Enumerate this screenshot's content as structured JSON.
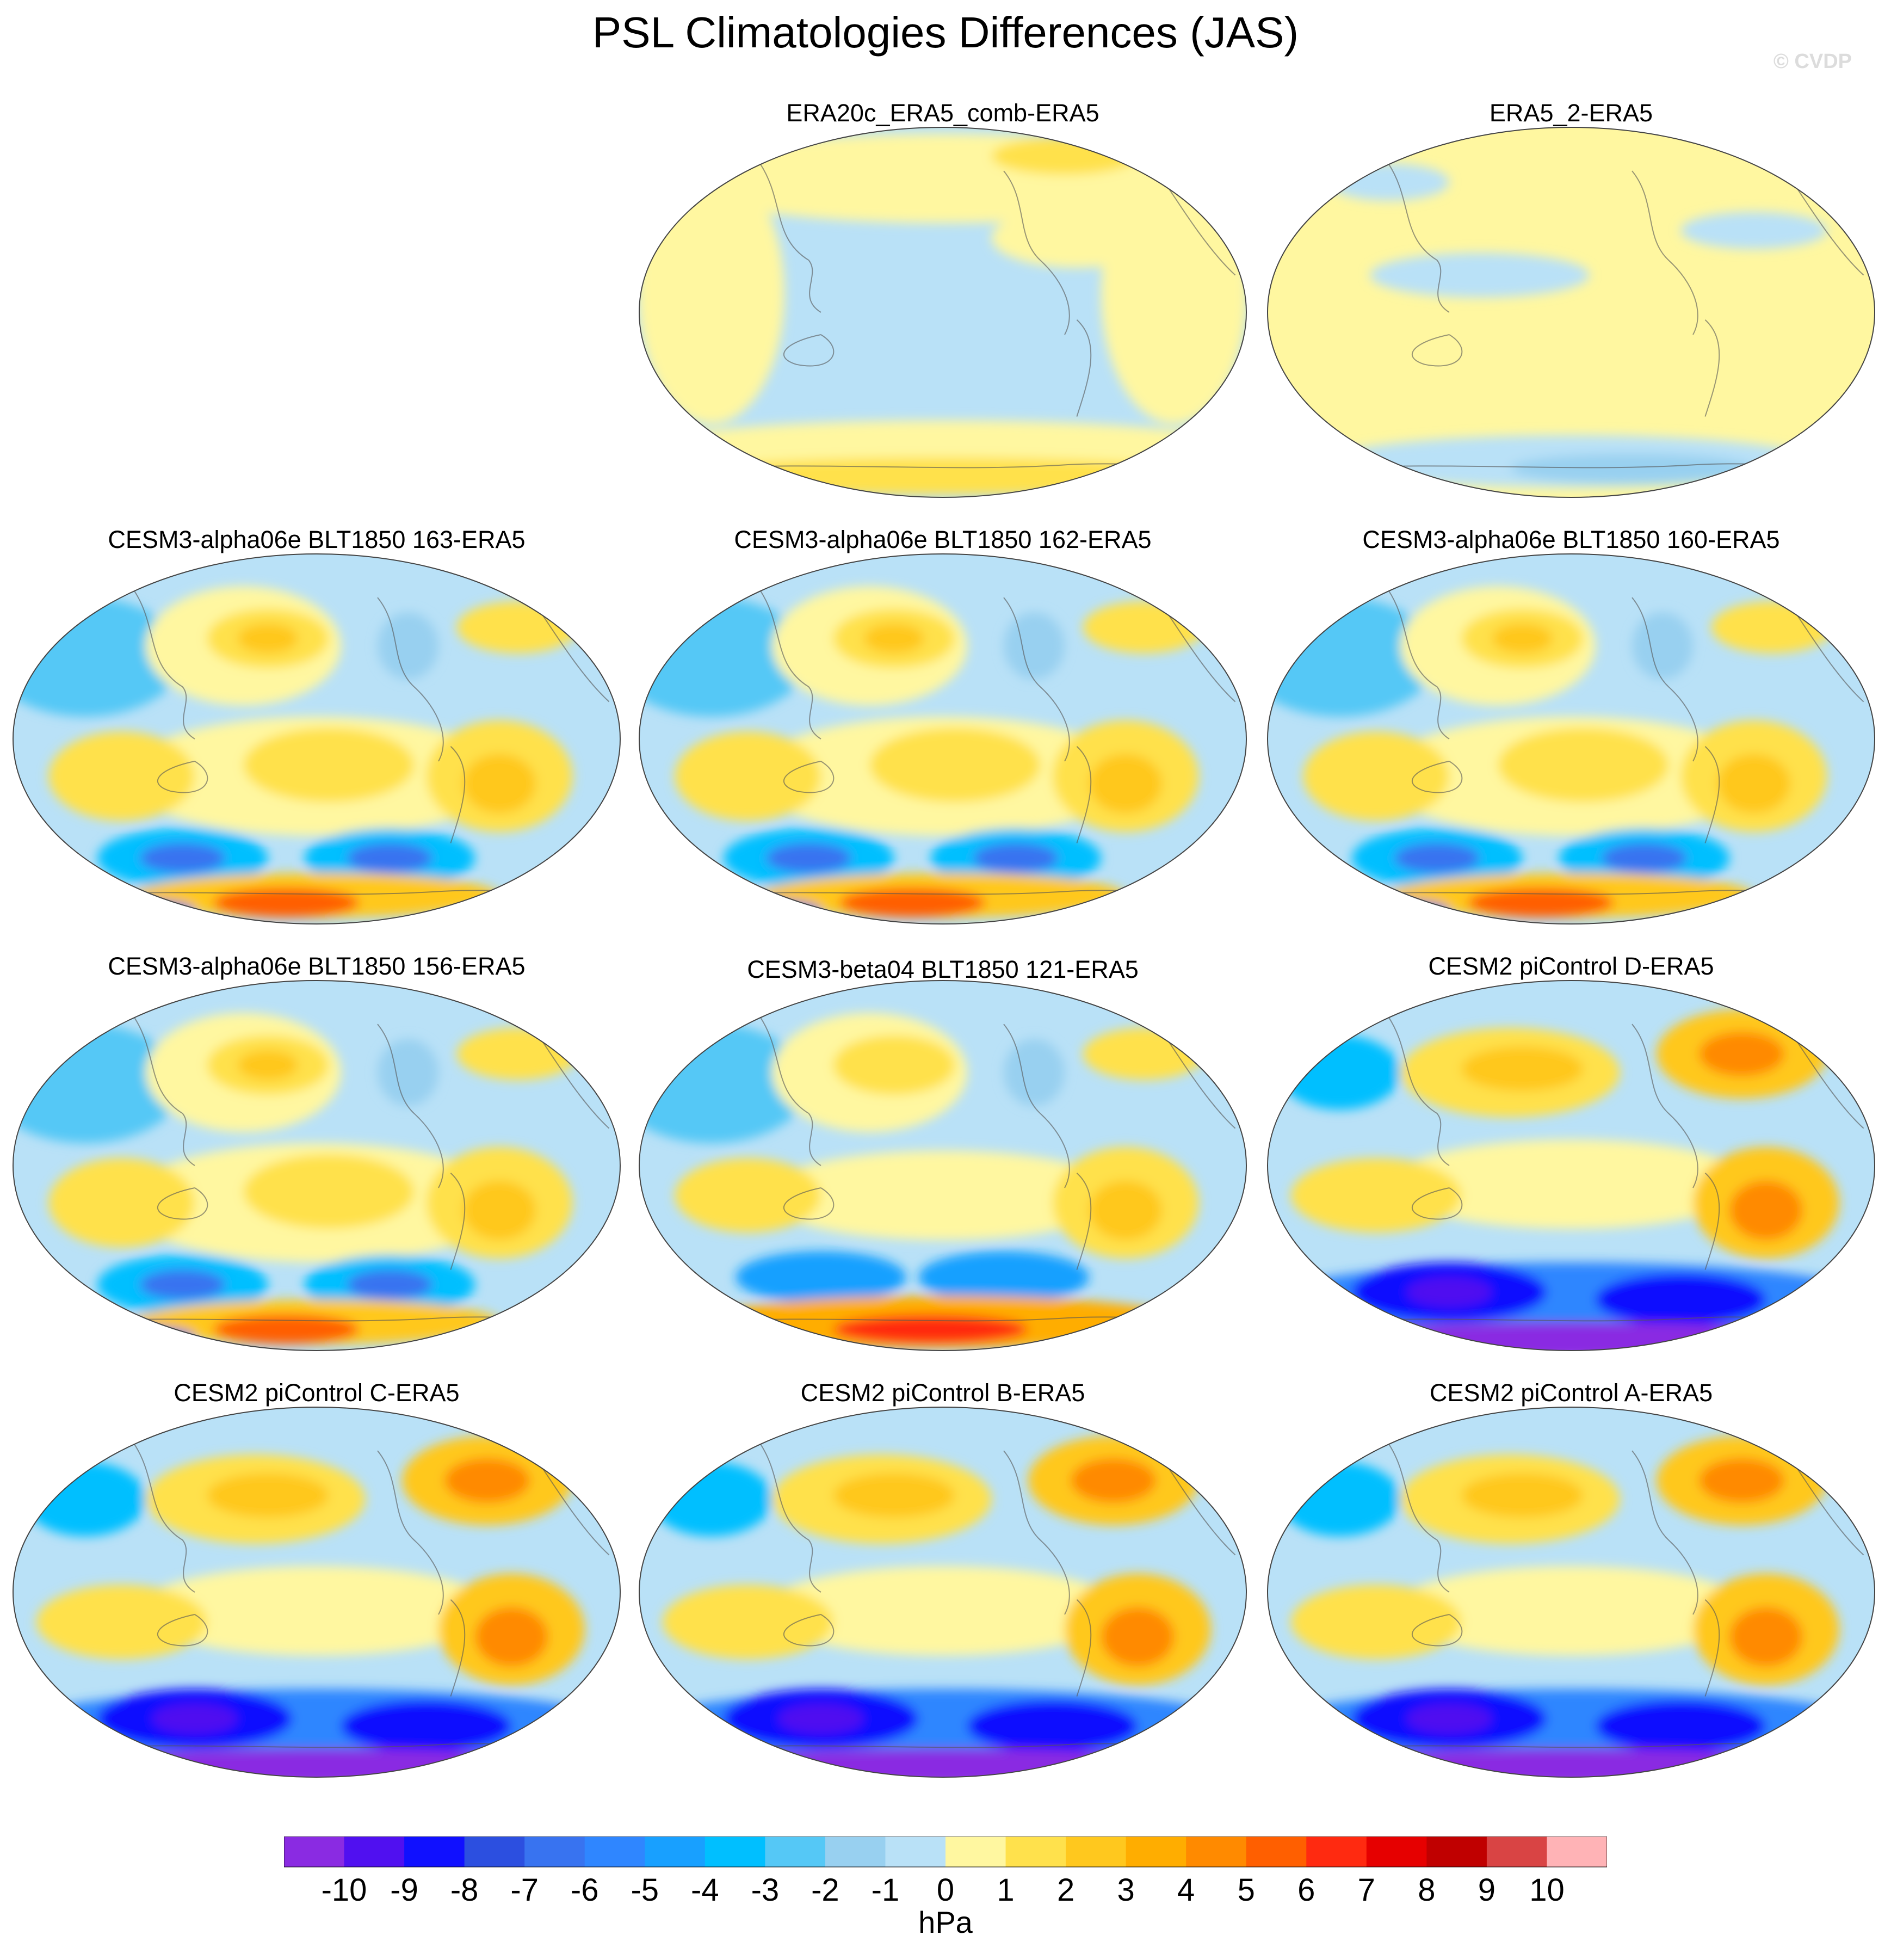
{
  "header": {
    "title": "PSL Climatologies Differences (JAS)",
    "credit": "© CVDP"
  },
  "panels": [
    {
      "id": "era20c",
      "title": "ERA20c_ERA5_comb-ERA5",
      "style": "obs1"
    },
    {
      "id": "era5_2",
      "title": "ERA5_2-ERA5",
      "style": "obs2"
    },
    {
      "id": "a163",
      "title": "CESM3-alpha06e BLT1850 163-ERA5",
      "style": "alpha"
    },
    {
      "id": "a162",
      "title": "CESM3-alpha06e BLT1850 162-ERA5",
      "style": "alpha"
    },
    {
      "id": "a160",
      "title": "CESM3-alpha06e BLT1850 160-ERA5",
      "style": "alpha"
    },
    {
      "id": "a156",
      "title": "CESM3-alpha06e BLT1850 156-ERA5",
      "style": "alpha"
    },
    {
      "id": "b121",
      "title": "CESM3-beta04 BLT1850 121-ERA5",
      "style": "beta"
    },
    {
      "id": "pD",
      "title": "CESM2 piControl D-ERA5",
      "style": "cesm2"
    },
    {
      "id": "pC",
      "title": "CESM2 piControl C-ERA5",
      "style": "cesm2"
    },
    {
      "id": "pB",
      "title": "CESM2 piControl B-ERA5",
      "style": "cesm2"
    },
    {
      "id": "pA",
      "title": "CESM2 piControl A-ERA5",
      "style": "cesm2"
    }
  ],
  "colorbar": {
    "units": "hPa",
    "tick_labels": [
      "-10",
      "-9",
      "-8",
      "-7",
      "-6",
      "-5",
      "-4",
      "-3",
      "-2",
      "-1",
      "0",
      "1",
      "2",
      "3",
      "4",
      "5",
      "6",
      "7",
      "8",
      "9",
      "10"
    ],
    "colors": [
      "#8a2be2",
      "#5010f0",
      "#1010ff",
      "#2c4fe0",
      "#3873f0",
      "#2f86ff",
      "#18a0ff",
      "#00bfff",
      "#55c8f6",
      "#98d0f0",
      "#b9e1f7",
      "#fff7a0",
      "#ffe14c",
      "#ffc81e",
      "#ffad00",
      "#ff8a00",
      "#ff5f00",
      "#ff2a10",
      "#e60000",
      "#c00000",
      "#d94444",
      "#ffb3b6"
    ]
  }
}
